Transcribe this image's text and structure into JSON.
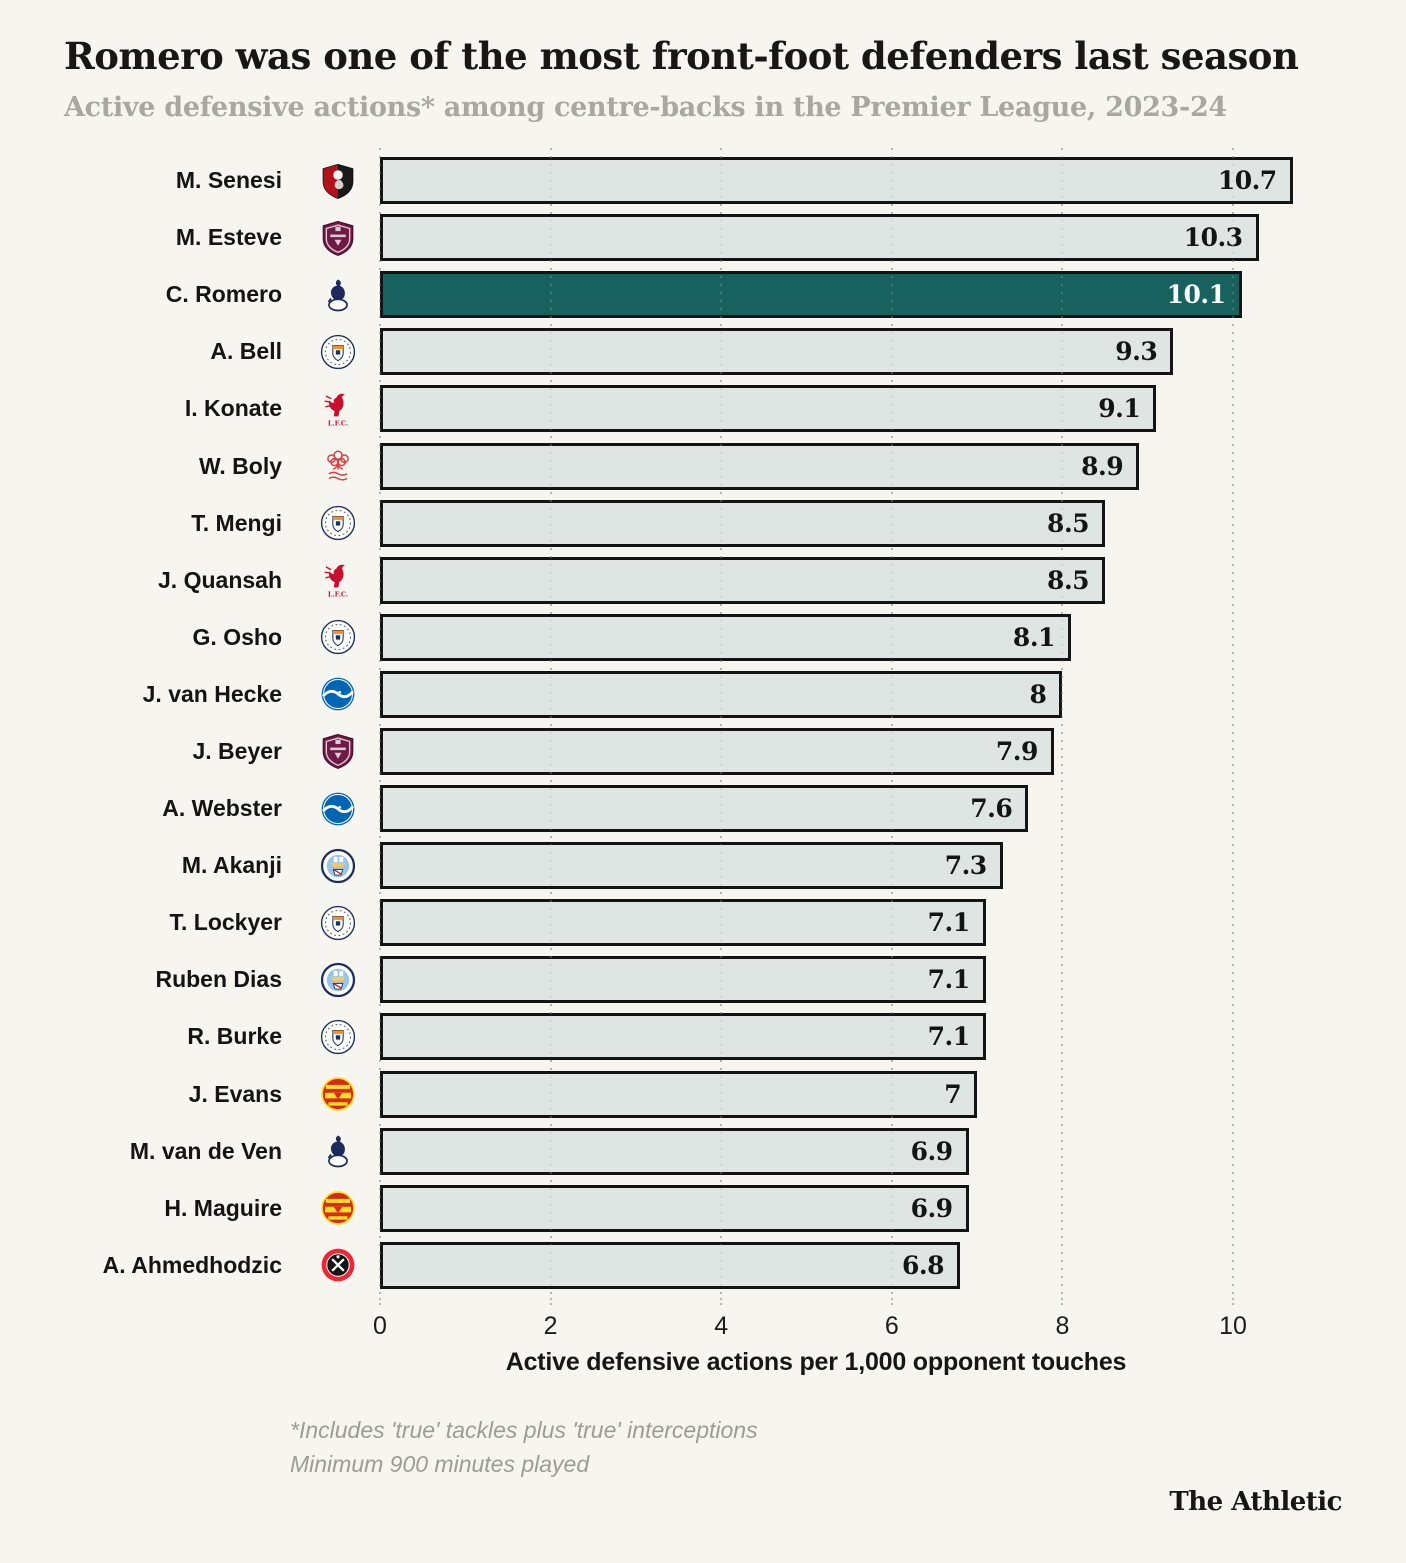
{
  "header": {
    "title": "Romero was one of the most front-foot defenders last season",
    "subtitle": "Active defensive actions* among centre-backs in the Premier League, 2023-24"
  },
  "chart_data": {
    "type": "bar",
    "orientation": "horizontal",
    "title": "Romero was one of the most front-foot defenders last season",
    "subtitle": "Active defensive actions* among centre-backs in the Premier League, 2023-24",
    "xlabel": "Active defensive actions per 1,000 opponent touches",
    "xlim": [
      0,
      11
    ],
    "x_ticks": [
      0,
      2,
      4,
      6,
      8,
      10
    ],
    "grid": "dotted-vertical",
    "legend": "none",
    "highlighted_player": "C. Romero",
    "players": [
      {
        "name": "M. Senesi",
        "club": "AFC Bournemouth",
        "club_id": "bournemouth",
        "value": 10.7,
        "highlight": false
      },
      {
        "name": "M. Esteve",
        "club": "Burnley",
        "club_id": "burnley",
        "value": 10.3,
        "highlight": false
      },
      {
        "name": "C. Romero",
        "club": "Tottenham Hotspur",
        "club_id": "tottenham",
        "value": 10.1,
        "highlight": true
      },
      {
        "name": "A. Bell",
        "club": "Luton Town",
        "club_id": "luton",
        "value": 9.3,
        "highlight": false
      },
      {
        "name": "I. Konate",
        "club": "Liverpool",
        "club_id": "liverpool",
        "value": 9.1,
        "highlight": false
      },
      {
        "name": "W. Boly",
        "club": "Nottingham Forest",
        "club_id": "forest",
        "value": 8.9,
        "highlight": false
      },
      {
        "name": "T. Mengi",
        "club": "Luton Town",
        "club_id": "luton",
        "value": 8.5,
        "highlight": false
      },
      {
        "name": "J. Quansah",
        "club": "Liverpool",
        "club_id": "liverpool",
        "value": 8.5,
        "highlight": false
      },
      {
        "name": "G. Osho",
        "club": "Luton Town",
        "club_id": "luton",
        "value": 8.1,
        "highlight": false
      },
      {
        "name": "J. van Hecke",
        "club": "Brighton & Hove Albion",
        "club_id": "brighton",
        "value": 8,
        "highlight": false
      },
      {
        "name": "J. Beyer",
        "club": "Burnley",
        "club_id": "burnley",
        "value": 7.9,
        "highlight": false
      },
      {
        "name": "A. Webster",
        "club": "Brighton & Hove Albion",
        "club_id": "brighton",
        "value": 7.6,
        "highlight": false
      },
      {
        "name": "M. Akanji",
        "club": "Manchester City",
        "club_id": "mancity",
        "value": 7.3,
        "highlight": false
      },
      {
        "name": "T. Lockyer",
        "club": "Luton Town",
        "club_id": "luton",
        "value": 7.1,
        "highlight": false
      },
      {
        "name": "Ruben Dias",
        "club": "Manchester City",
        "club_id": "mancity",
        "value": 7.1,
        "highlight": false
      },
      {
        "name": "R. Burke",
        "club": "Luton Town",
        "club_id": "luton",
        "value": 7.1,
        "highlight": false
      },
      {
        "name": "J. Evans",
        "club": "Manchester United",
        "club_id": "manutd",
        "value": 7,
        "highlight": false
      },
      {
        "name": "M. van de Ven",
        "club": "Tottenham Hotspur",
        "club_id": "tottenham",
        "value": 6.9,
        "highlight": false
      },
      {
        "name": "H. Maguire",
        "club": "Manchester United",
        "club_id": "manutd",
        "value": 6.9,
        "highlight": false
      },
      {
        "name": "A. Ahmedhodzic",
        "club": "Sheffield United",
        "club_id": "sheffutd",
        "value": 6.8,
        "highlight": false
      }
    ]
  },
  "club_colors": {
    "bournemouth": {
      "primary": "#b0121b",
      "secondary": "#1a1a1a",
      "detail": "#f4f3ee"
    },
    "burnley": {
      "primary": "#6d1a45",
      "secondary": "#dfc7d4"
    },
    "tottenham": {
      "primary": "#1b2a5b",
      "secondary": "#ffffff"
    },
    "luton": {
      "primary": "#1d2f5e",
      "secondary": "#f78f1e",
      "detail": "#ffffff"
    },
    "liverpool": {
      "primary": "#c8102e"
    },
    "forest": {
      "primary": "#e03a3e"
    },
    "brighton": {
      "primary": "#0066b3",
      "secondary": "#ffffff"
    },
    "mancity": {
      "primary": "#98c5e9",
      "secondary": "#1c2c5b",
      "accent": "#ffc659",
      "detail": "#ffffff"
    },
    "manutd": {
      "primary": "#da291c",
      "secondary": "#fbe122"
    },
    "sheffutd": {
      "primary": "#ee2737",
      "secondary": "#151515",
      "detail": "#ffffff"
    }
  },
  "colors": {
    "background": "#f7f5f0",
    "bar_fill": "#dee5e2",
    "bar_border": "#141414",
    "highlight_bar": "#17625e",
    "highlight_value_text": "#fafaf6",
    "title_text": "#181716",
    "subtitle_text": "#a9a7a1",
    "footnote_text": "#9d9b94",
    "gridline": "#b7b6b0"
  },
  "footnotes": [
    "*Includes 'true' tackles plus 'true' interceptions",
    "Minimum 900 minutes played"
  ],
  "brand": "The Athletic"
}
